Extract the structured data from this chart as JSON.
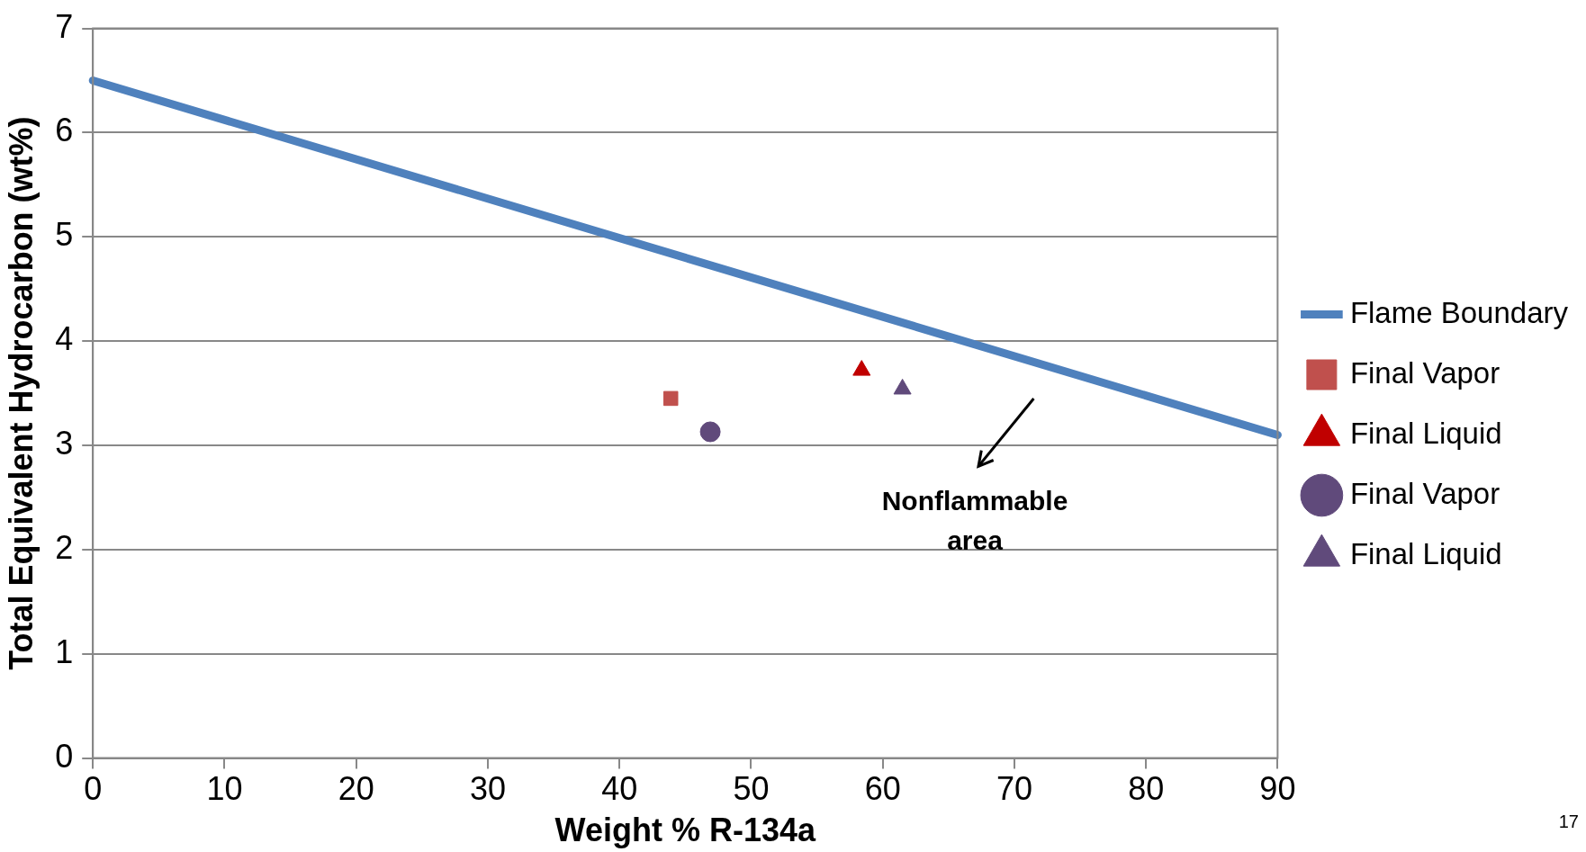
{
  "chart_data": {
    "type": "scatter",
    "xlabel": "Weight % R-134a",
    "ylabel": "Total Equivalent Hydrocarbon (wt%)",
    "xlim": [
      0,
      90
    ],
    "xticks": [
      0,
      10,
      20,
      30,
      40,
      50,
      60,
      70,
      80,
      90
    ],
    "ylim": [
      0,
      7
    ],
    "yticks": [
      0,
      1,
      2,
      3,
      4,
      5,
      6,
      7
    ],
    "grid": "y",
    "legend": "right",
    "series": [
      {
        "name": "Flame Boundary",
        "type": "line",
        "color": "#4f81bd",
        "x": [
          0,
          90
        ],
        "values": [
          6.5,
          3.1
        ],
        "marker": "none",
        "line_style": "solid"
      },
      {
        "name": "Final Vapor",
        "color": "#c0504d",
        "x": [
          43.9
        ],
        "values": [
          3.45
        ],
        "marker": "square"
      },
      {
        "name": "Final Liquid",
        "color": "#c00000",
        "x": [
          58.4
        ],
        "values": [
          3.72
        ],
        "marker": "triangle"
      },
      {
        "name": "Final Vapor",
        "color": "#604a7b",
        "x": [
          46.9
        ],
        "values": [
          3.13
        ],
        "marker": "circle"
      },
      {
        "name": "Final Liquid",
        "color": "#604a7b",
        "x": [
          61.5
        ],
        "values": [
          3.54
        ],
        "marker": "triangle"
      }
    ],
    "annotations": [
      "Nonflammable area",
      "17"
    ]
  }
}
